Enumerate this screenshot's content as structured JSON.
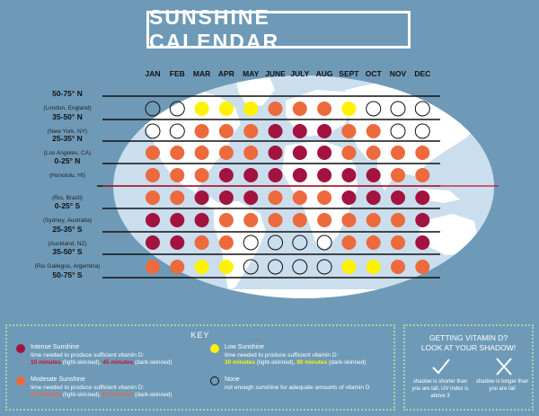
{
  "title": "SUNSHINE CALENDAR",
  "months": [
    "JAN",
    "FEB",
    "MAR",
    "APR",
    "MAY",
    "JUNE",
    "JULY",
    "AUG",
    "SEPT",
    "OCT",
    "NOV",
    "DEC"
  ],
  "latitude_rows": [
    {
      "label": "50-75° N",
      "place": "(London, England)",
      "levels": [
        "none",
        "none",
        "low",
        "low",
        "low",
        "moderate",
        "moderate",
        "moderate",
        "low",
        "none",
        "none",
        "none"
      ]
    },
    {
      "label": "35-50° N",
      "place": "(New York, NY)",
      "levels": [
        "none",
        "none",
        "moderate",
        "moderate",
        "moderate",
        "intense",
        "intense",
        "intense",
        "moderate",
        "moderate",
        "none",
        "none"
      ]
    },
    {
      "label": "25-35° N",
      "place": "(Los Angeles, CA)",
      "levels": [
        "moderate",
        "moderate",
        "moderate",
        "moderate",
        "moderate",
        "intense",
        "intense",
        "intense",
        "moderate",
        "moderate",
        "moderate",
        "moderate"
      ]
    },
    {
      "label": "0-25° N",
      "place": "(Honolulu, HI)",
      "levels": [
        "moderate",
        "moderate",
        "moderate",
        "intense",
        "intense",
        "intense",
        "intense",
        "intense",
        "intense",
        "intense",
        "moderate",
        "moderate"
      ]
    },
    {
      "label": "",
      "place": "(Rio, Brazil)",
      "levels": [
        "moderate",
        "moderate",
        "intense",
        "intense",
        "intense",
        "moderate",
        "moderate",
        "moderate",
        "intense",
        "intense",
        "intense",
        "intense"
      ]
    },
    {
      "label": "0-25° S",
      "place": "(Sydney, Australia)",
      "levels": [
        "intense",
        "intense",
        "intense",
        "moderate",
        "moderate",
        "moderate",
        "moderate",
        "moderate",
        "moderate",
        "moderate",
        "moderate",
        "intense"
      ]
    },
    {
      "label": "25-35° S",
      "place": "(Auckland, NZ)",
      "levels": [
        "intense",
        "intense",
        "moderate",
        "moderate",
        "none",
        "none",
        "none",
        "none",
        "moderate",
        "moderate",
        "moderate",
        "intense"
      ]
    },
    {
      "label": "35-50° S",
      "place": "(Rio Gallegos, Argentina)",
      "levels": [
        "moderate",
        "moderate",
        "low",
        "low",
        "none",
        "none",
        "none",
        "none",
        "low",
        "low",
        "moderate",
        "moderate"
      ]
    },
    {
      "label": "50-75° S",
      "place": "",
      "levels": []
    }
  ],
  "colors": {
    "intense": "#a3133f",
    "moderate": "#ec6a3c",
    "low": "#fff200",
    "none": "transparent",
    "background": "#6f9ab7",
    "map_ocean": "#cadeee",
    "map_land": "#ffffff",
    "equator": "#c8102e"
  },
  "key": {
    "title": "KEY",
    "intense": {
      "name": "Intense Sunshine",
      "desc": "time needed to produce sufficient vitamin D:",
      "time_light": "10 minutes",
      "light_label": "(light-skinned),",
      "time_dark": "45 minutes",
      "dark_label": "(dark-skinned)"
    },
    "moderate": {
      "name": "Moderate Sunshine",
      "desc": "time needed to produce sufficient vitamin D:",
      "time_light": "20 minutes",
      "light_label": "(light-skinned),",
      "time_dark": "60 minutes",
      "dark_label": "(dark-skinned)"
    },
    "low": {
      "name": "Low Sunshine",
      "desc": "time needed to produce sufficient vitamin D:",
      "time_light": "30 minutes",
      "light_label": "(light-skinned),",
      "time_dark": "90 minutes",
      "dark_label": "(dark-skinned)"
    },
    "none": {
      "name": "None",
      "desc": "not enough sunshine for adequate amounts of vitamin D"
    }
  },
  "vitamin_box": {
    "title_line1": "GETTING VITAMIN D?",
    "title_line2": "LOOK AT YOUR SHADOW!",
    "yes_icon": "checkmark-icon",
    "yes_caption": "shadow is shorter than you are tall, UV index is above 3",
    "no_icon": "x-mark-icon",
    "no_caption": "shadow is longer than you are tall"
  }
}
